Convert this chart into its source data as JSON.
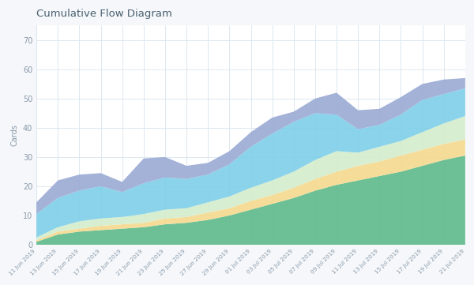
{
  "title": "Cumulative Flow Diagram",
  "ylabel": "Cards",
  "background_color": "#f5f7fa",
  "plot_background": "#ffffff",
  "title_color": "#4a6070",
  "grid_color": "#dce8f0",
  "ylim": [
    0,
    75
  ],
  "yticks": [
    0,
    10,
    20,
    30,
    40,
    50,
    60,
    70
  ],
  "x_labels": [
    "11 Jun 2019",
    "13 Jun 2019",
    "15 Jun 2019",
    "17 Jun 2019",
    "19 Jun 2019",
    "21 Jun 2019",
    "23 Jun 2019",
    "25 Jun 2019",
    "27 Jun 2019",
    "29 Jun 2019",
    "01 Jul 2019",
    "03 Jul 2019",
    "05 Jul 2019",
    "07 Jul 2019",
    "09 Jul 2019",
    "11 Jul 2019",
    "13 Jul 2019",
    "15 Jul 2019",
    "17 Jul 2019",
    "19 Jul 2019",
    "21 Jul 2019"
  ],
  "colors": [
    "#5dba8a",
    "#f5d98e",
    "#d4edcc",
    "#7ecfe8",
    "#9aaad4"
  ],
  "layers": [
    [
      1.0,
      3.5,
      4.5,
      5.0,
      5.5,
      6.0,
      7.0,
      7.5,
      8.5,
      10.0,
      12.0,
      14.0,
      16.0,
      18.5,
      20.5,
      22.0,
      23.5,
      25.0,
      27.0,
      29.0,
      30.5
    ],
    [
      0.5,
      1.0,
      1.0,
      1.5,
      1.5,
      1.5,
      2.0,
      2.0,
      2.5,
      2.5,
      3.0,
      3.0,
      3.5,
      4.0,
      4.5,
      5.0,
      5.0,
      5.5,
      5.5,
      5.5,
      5.5
    ],
    [
      1.0,
      1.5,
      2.5,
      2.5,
      2.5,
      3.0,
      3.0,
      3.0,
      3.5,
      4.0,
      4.5,
      5.0,
      5.5,
      6.5,
      7.0,
      4.5,
      5.0,
      5.0,
      6.0,
      7.0,
      8.0
    ],
    [
      8.0,
      10.0,
      10.5,
      11.0,
      8.5,
      10.5,
      11.0,
      10.0,
      9.5,
      11.0,
      14.0,
      16.0,
      17.0,
      16.0,
      12.5,
      8.0,
      7.5,
      9.0,
      11.0,
      10.0,
      9.5
    ],
    [
      4.0,
      6.0,
      5.5,
      4.5,
      3.5,
      8.5,
      7.0,
      4.5,
      4.0,
      4.5,
      5.0,
      5.5,
      3.5,
      5.0,
      7.5,
      6.5,
      5.5,
      6.0,
      5.5,
      5.0,
      3.5
    ]
  ]
}
